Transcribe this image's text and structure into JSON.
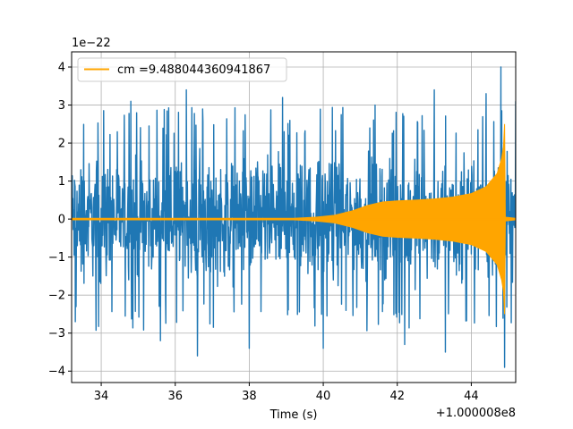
{
  "chart_data": {
    "type": "line",
    "title": "",
    "xlabel": "Time (s)",
    "ylabel": "",
    "x_offset_label": "+1.000008e8",
    "y_scale_label": "1e−22",
    "xlim": [
      33.2,
      45.2
    ],
    "ylim": [
      -4.3,
      4.4
    ],
    "x_ticks": [
      34,
      36,
      38,
      40,
      42,
      44
    ],
    "x_tick_labels": [
      "34",
      "36",
      "38",
      "40",
      "42",
      "44"
    ],
    "y_ticks": [
      -4,
      -3,
      -2,
      -1,
      0,
      1,
      2,
      3,
      4
    ],
    "y_tick_labels": [
      "−4",
      "−3",
      "−2",
      "−1",
      "0",
      "1",
      "2",
      "3",
      "4"
    ],
    "grid": true,
    "legend_position": "top-left",
    "series": [
      {
        "name": "",
        "color": "#1f77b4",
        "kind": "noise",
        "typical_envelope": [
          -2.1,
          2.1
        ],
        "extreme_points": [
          {
            "x": 33.3,
            "y": -2.7
          },
          {
            "x": 34.8,
            "y": 3.1
          },
          {
            "x": 35.6,
            "y": -3.2
          },
          {
            "x": 36.3,
            "y": 3.4
          },
          {
            "x": 36.6,
            "y": -3.6
          },
          {
            "x": 38.0,
            "y": -3.4
          },
          {
            "x": 38.9,
            "y": 3.2
          },
          {
            "x": 40.0,
            "y": -3.4
          },
          {
            "x": 41.4,
            "y": 3.0
          },
          {
            "x": 42.2,
            "y": -3.3
          },
          {
            "x": 43.0,
            "y": 3.4
          },
          {
            "x": 43.3,
            "y": -3.5
          },
          {
            "x": 44.4,
            "y": 3.3
          },
          {
            "x": 44.8,
            "y": 4.0
          },
          {
            "x": 44.9,
            "y": -3.9
          },
          {
            "x": 45.2,
            "y": 3.1
          }
        ]
      },
      {
        "name": "cm =9.488044360941867",
        "color": "#ffa500",
        "kind": "chirp",
        "envelope": [
          {
            "x": 33.2,
            "y": 0.02
          },
          {
            "x": 39.2,
            "y": 0.02
          },
          {
            "x": 39.8,
            "y": 0.05
          },
          {
            "x": 40.3,
            "y": 0.1
          },
          {
            "x": 40.8,
            "y": 0.22
          },
          {
            "x": 41.2,
            "y": 0.36
          },
          {
            "x": 41.6,
            "y": 0.45
          },
          {
            "x": 42.0,
            "y": 0.48
          },
          {
            "x": 42.5,
            "y": 0.5
          },
          {
            "x": 43.0,
            "y": 0.53
          },
          {
            "x": 43.5,
            "y": 0.58
          },
          {
            "x": 44.0,
            "y": 0.67
          },
          {
            "x": 44.4,
            "y": 0.85
          },
          {
            "x": 44.7,
            "y": 1.2
          },
          {
            "x": 44.82,
            "y": 1.6
          },
          {
            "x": 44.87,
            "y": 1.9
          },
          {
            "x": 44.9,
            "y": 2.5
          },
          {
            "x": 44.92,
            "y": 0.05
          },
          {
            "x": 45.2,
            "y": 0.02
          }
        ]
      }
    ]
  }
}
